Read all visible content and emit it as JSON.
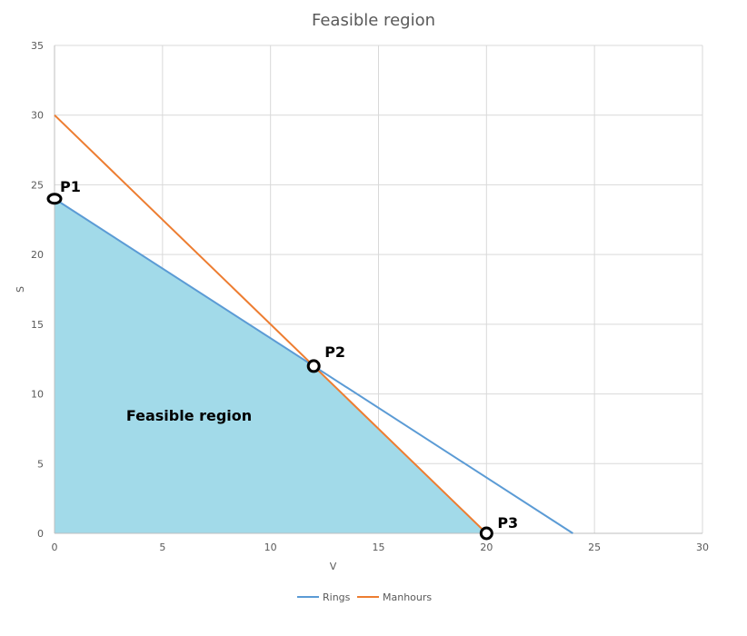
{
  "chart_data": {
    "type": "area",
    "title": "Feasible region",
    "xlabel": "V",
    "ylabel": "S",
    "xlim": [
      0,
      30
    ],
    "ylim": [
      0,
      35
    ],
    "xticks": [
      0,
      5,
      10,
      15,
      20,
      25,
      30
    ],
    "yticks": [
      0,
      5,
      10,
      15,
      20,
      25,
      30,
      35
    ],
    "grid": true,
    "legend_position": "bottom",
    "series": [
      {
        "name": "Rings",
        "color": "#5B9BD5",
        "x": [
          0,
          24
        ],
        "y": [
          24,
          0
        ]
      },
      {
        "name": "Manhours",
        "color": "#ED7D31",
        "x": [
          0,
          20
        ],
        "y": [
          30,
          0
        ]
      }
    ],
    "feasible_region": {
      "color": "#A2DAE9",
      "label": "Feasible region",
      "vertices": [
        [
          0,
          0
        ],
        [
          0,
          24
        ],
        [
          12,
          12
        ],
        [
          20,
          0
        ]
      ]
    },
    "points": [
      {
        "label": "P1",
        "x": 0,
        "y": 24
      },
      {
        "label": "P2",
        "x": 12,
        "y": 12
      },
      {
        "label": "P3",
        "x": 20,
        "y": 0
      }
    ]
  }
}
